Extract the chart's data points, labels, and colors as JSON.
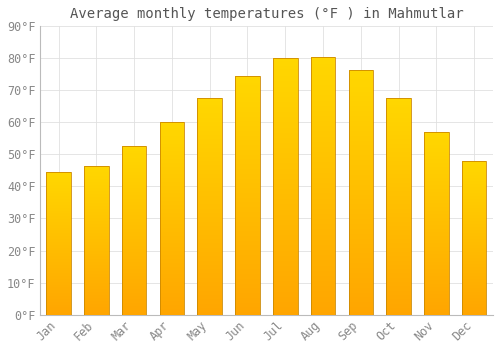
{
  "title": "Average monthly temperatures (°F ) in Mahmutlar",
  "months": [
    "Jan",
    "Feb",
    "Mar",
    "Apr",
    "May",
    "Jun",
    "Jul",
    "Aug",
    "Sep",
    "Oct",
    "Nov",
    "Dec"
  ],
  "values": [
    44.5,
    46.5,
    52.5,
    60.0,
    67.5,
    74.5,
    80.0,
    80.5,
    76.5,
    67.5,
    57.0,
    48.0
  ],
  "bar_color_main": "#FFA500",
  "bar_color_light": "#FFD700",
  "bar_color_dark": "#E8870A",
  "background_color": "#FFFFFF",
  "grid_color": "#E0E0E0",
  "text_color": "#888888",
  "ylim": [
    0,
    90
  ],
  "yticks": [
    0,
    10,
    20,
    30,
    40,
    50,
    60,
    70,
    80,
    90
  ],
  "title_fontsize": 10,
  "tick_fontsize": 8.5
}
